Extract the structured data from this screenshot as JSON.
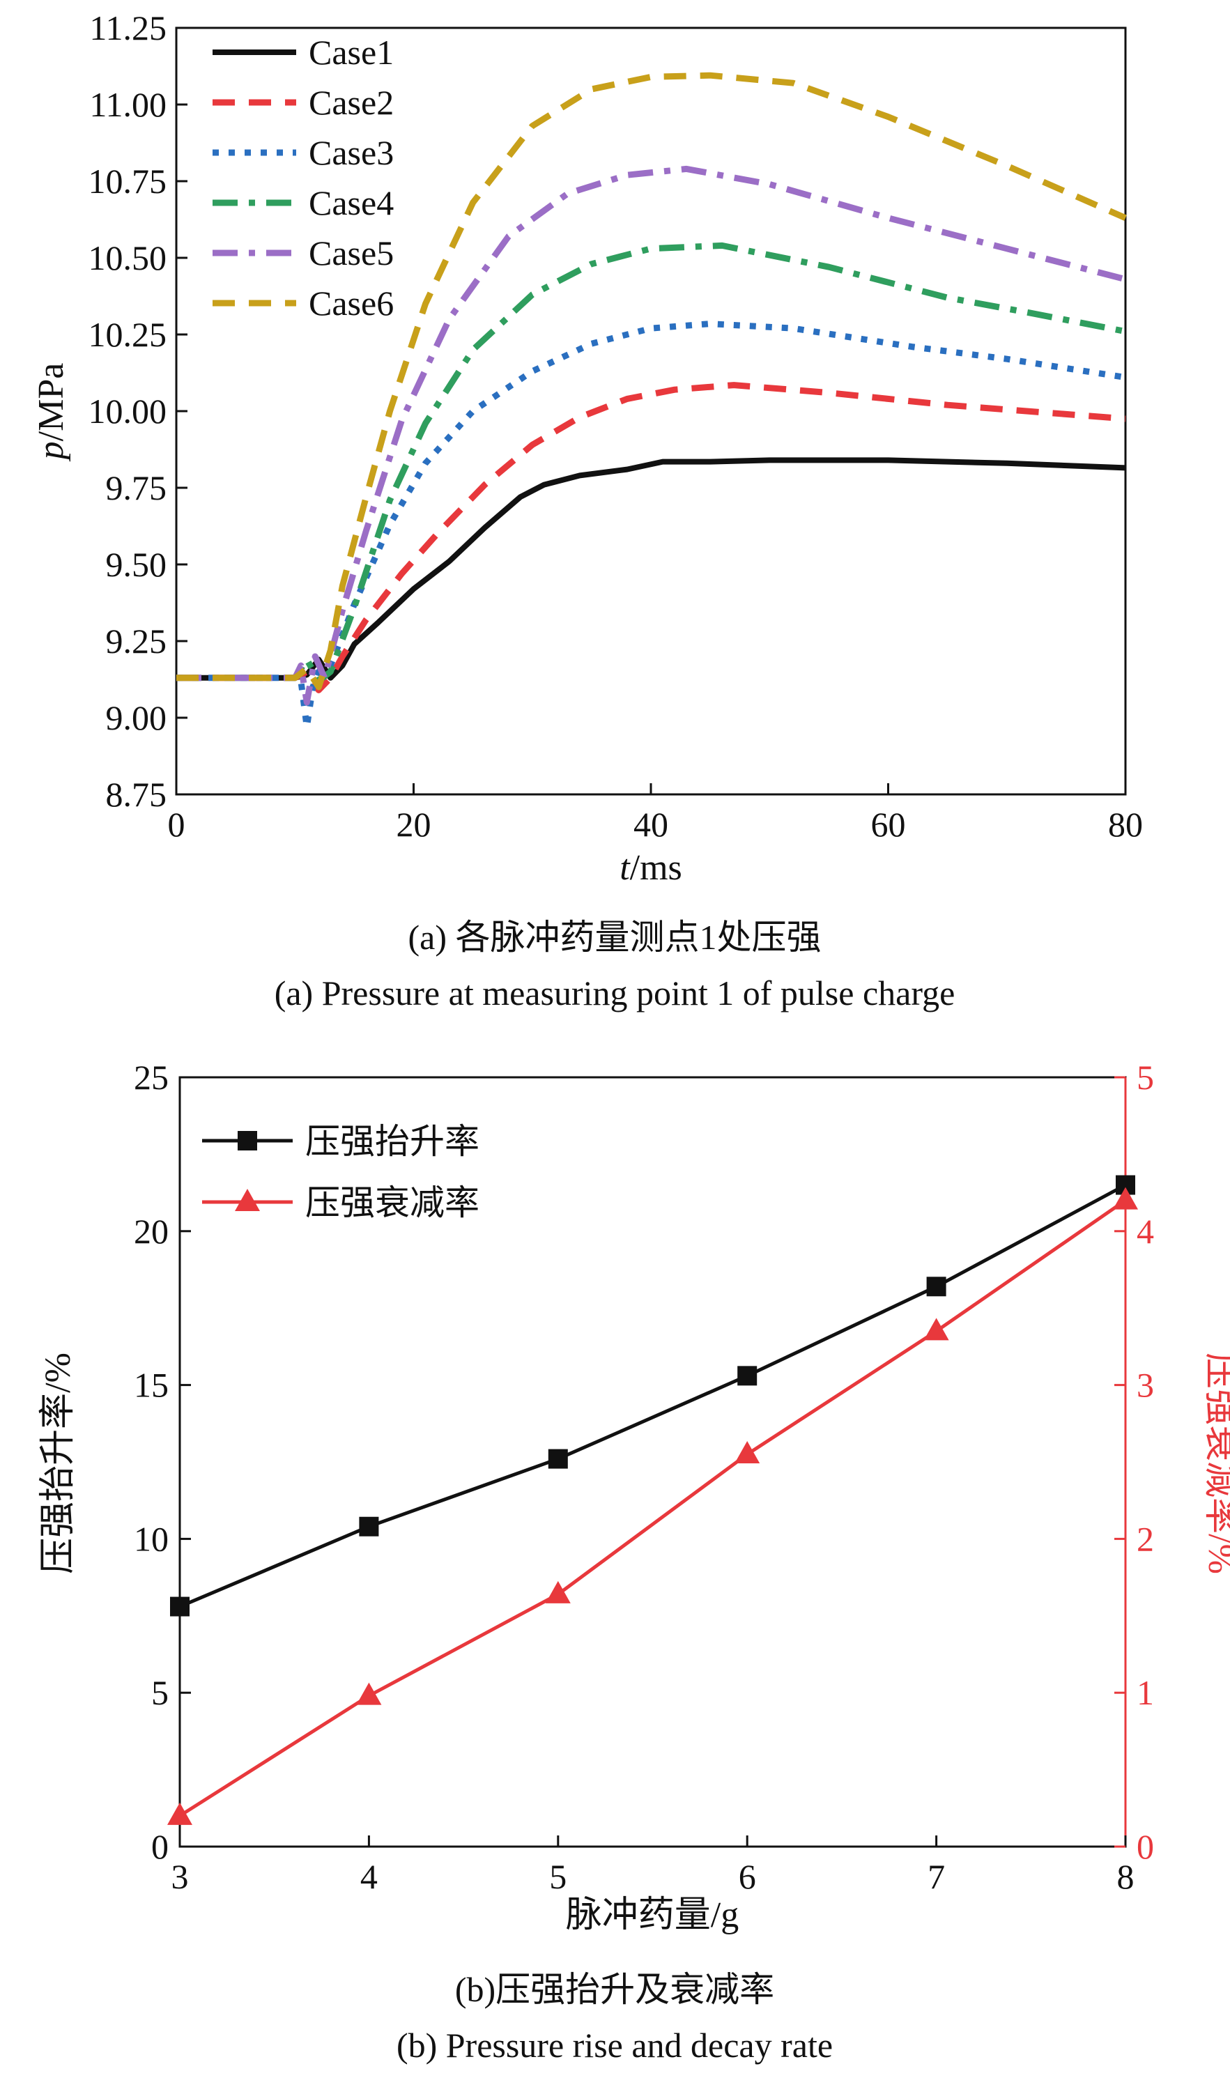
{
  "chart_data": [
    {
      "type": "line",
      "ylabel_italic": "p",
      "ylabel_unit": "/MPa",
      "xlabel_italic": "t",
      "xlabel_unit": "/ms",
      "xlim": [
        0,
        80
      ],
      "ylim": [
        8.75,
        11.25
      ],
      "xticks": [
        "0",
        "20",
        "40",
        "60",
        "80"
      ],
      "yticks": [
        "8.75",
        "9.00",
        "9.25",
        "9.50",
        "9.75",
        "10.00",
        "10.25",
        "10.50",
        "10.75",
        "11.00",
        "11.25"
      ],
      "legend_position": "top-left",
      "caption_cn": "(a) 各脉冲药量测点1处压强",
      "caption_en": "(a) Pressure at measuring point 1 of pulse charge",
      "series": [
        {
          "name": "Case1",
          "color": "#111111",
          "style": "solid",
          "points": [
            [
              0,
              9.13
            ],
            [
              10,
              9.13
            ],
            [
              11,
              9.14
            ],
            [
              12,
              9.19
            ],
            [
              13,
              9.13
            ],
            [
              14,
              9.17
            ],
            [
              15,
              9.24
            ],
            [
              17,
              9.31
            ],
            [
              20,
              9.42
            ],
            [
              23,
              9.51
            ],
            [
              26,
              9.62
            ],
            [
              29,
              9.72
            ],
            [
              31,
              9.76
            ],
            [
              34,
              9.79
            ],
            [
              38,
              9.81
            ],
            [
              41,
              9.835
            ],
            [
              45,
              9.835
            ],
            [
              50,
              9.84
            ],
            [
              60,
              9.84
            ],
            [
              70,
              9.83
            ],
            [
              80,
              9.815
            ]
          ]
        },
        {
          "name": "Case2",
          "color": "#e8383c",
          "style": "dash",
          "points": [
            [
              0,
              9.13
            ],
            [
              10,
              9.13
            ],
            [
              11,
              9.15
            ],
            [
              12,
              9.09
            ],
            [
              13,
              9.13
            ],
            [
              14,
              9.2
            ],
            [
              16,
              9.32
            ],
            [
              19,
              9.47
            ],
            [
              22,
              9.6
            ],
            [
              26,
              9.76
            ],
            [
              30,
              9.89
            ],
            [
              34,
              9.98
            ],
            [
              38,
              10.04
            ],
            [
              42,
              10.07
            ],
            [
              47,
              10.085
            ],
            [
              55,
              10.06
            ],
            [
              65,
              10.02
            ],
            [
              80,
              9.975
            ]
          ]
        },
        {
          "name": "Case3",
          "color": "#2a6fc0",
          "style": "dot",
          "points": [
            [
              0,
              9.13
            ],
            [
              10,
              9.13
            ],
            [
              10.5,
              9.12
            ],
            [
              11,
              8.97
            ],
            [
              11.5,
              9.1
            ],
            [
              12,
              9.15
            ],
            [
              13,
              9.17
            ],
            [
              15,
              9.37
            ],
            [
              18,
              9.63
            ],
            [
              21,
              9.83
            ],
            [
              25,
              10.0
            ],
            [
              30,
              10.13
            ],
            [
              35,
              10.22
            ],
            [
              40,
              10.27
            ],
            [
              45,
              10.285
            ],
            [
              52,
              10.27
            ],
            [
              62,
              10.21
            ],
            [
              70,
              10.17
            ],
            [
              80,
              10.11
            ]
          ]
        },
        {
          "name": "Case4",
          "color": "#2f9e5e",
          "style": "dashdot",
          "points": [
            [
              0,
              9.13
            ],
            [
              10,
              9.13
            ],
            [
              11,
              9.19
            ],
            [
              12,
              9.12
            ],
            [
              13,
              9.15
            ],
            [
              15,
              9.36
            ],
            [
              18,
              9.71
            ],
            [
              21,
              9.96
            ],
            [
              25,
              10.2
            ],
            [
              30,
              10.38
            ],
            [
              35,
              10.48
            ],
            [
              40,
              10.53
            ],
            [
              46,
              10.54
            ],
            [
              55,
              10.47
            ],
            [
              65,
              10.37
            ],
            [
              72,
              10.32
            ],
            [
              80,
              10.26
            ]
          ]
        },
        {
          "name": "Case5",
          "color": "#9b6ec6",
          "style": "dashdot",
          "points": [
            [
              0,
              9.13
            ],
            [
              10,
              9.13
            ],
            [
              10.5,
              9.17
            ],
            [
              11,
              9.05
            ],
            [
              11.7,
              9.2
            ],
            [
              12.5,
              9.13
            ],
            [
              14,
              9.35
            ],
            [
              16,
              9.61
            ],
            [
              19,
              9.97
            ],
            [
              23,
              10.3
            ],
            [
              28,
              10.57
            ],
            [
              33,
              10.71
            ],
            [
              38,
              10.77
            ],
            [
              43,
              10.79
            ],
            [
              50,
              10.74
            ],
            [
              60,
              10.63
            ],
            [
              70,
              10.53
            ],
            [
              80,
              10.43
            ]
          ]
        },
        {
          "name": "Case6",
          "color": "#c8a01a",
          "style": "dash",
          "points": [
            [
              0,
              9.13
            ],
            [
              10,
              9.13
            ],
            [
              11,
              9.16
            ],
            [
              12,
              9.1
            ],
            [
              13,
              9.22
            ],
            [
              14,
              9.43
            ],
            [
              16,
              9.72
            ],
            [
              18,
              10.0
            ],
            [
              21,
              10.35
            ],
            [
              25,
              10.68
            ],
            [
              30,
              10.93
            ],
            [
              35,
              11.05
            ],
            [
              40,
              11.09
            ],
            [
              45,
              11.095
            ],
            [
              52,
              11.07
            ],
            [
              60,
              10.96
            ],
            [
              70,
              10.8
            ],
            [
              80,
              10.63
            ]
          ]
        }
      ]
    },
    {
      "type": "line",
      "xlabel": "脉冲药量/g",
      "ylabel_left": "压强抬升率/%",
      "ylabel_right": "压强衰减率/%",
      "xlim": [
        3,
        8
      ],
      "ylim_left": [
        0,
        25
      ],
      "ylim_right": [
        0,
        5
      ],
      "xticks": [
        "3",
        "4",
        "5",
        "6",
        "7",
        "8"
      ],
      "yticks_left": [
        "0",
        "5",
        "10",
        "15",
        "20",
        "25"
      ],
      "yticks_right": [
        "0",
        "1",
        "2",
        "3",
        "4",
        "5"
      ],
      "legend_position": "top-left",
      "caption_cn": "(b)压强抬升及衰减率",
      "caption_en": "(b) Pressure rise and decay rate",
      "x": [
        3,
        4,
        5,
        6,
        7,
        8
      ],
      "series": [
        {
          "name": "压强抬升率",
          "axis": "left",
          "marker": "square",
          "color": "#111111",
          "values": [
            7.8,
            10.4,
            12.6,
            15.3,
            18.2,
            21.5
          ]
        },
        {
          "name": "压强衰减率",
          "axis": "right",
          "marker": "triangle",
          "color": "#e8383c",
          "values": [
            0.2,
            0.98,
            1.64,
            2.55,
            3.35,
            4.2
          ]
        }
      ]
    }
  ]
}
